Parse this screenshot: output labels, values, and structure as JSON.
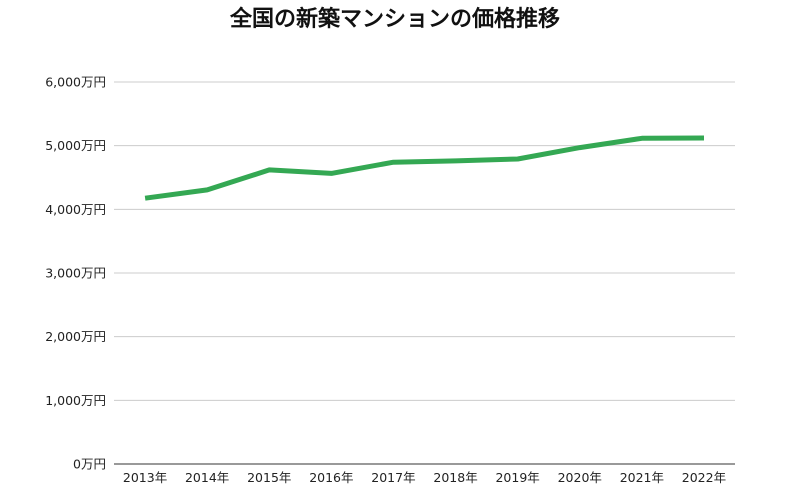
{
  "chart_data": {
    "type": "line",
    "title": "全国の新築マンションの価格推移",
    "categories": [
      "2013年",
      "2014年",
      "2015年",
      "2016年",
      "2017年",
      "2018年",
      "2019年",
      "2020年",
      "2021年",
      "2022年"
    ],
    "series": [
      {
        "values": [
          4175,
          4305,
          4620,
          4565,
          4740,
          4760,
          4790,
          4970,
          5115,
          5120
        ],
        "color": "#34a853"
      }
    ],
    "ylim": [
      0,
      6000
    ],
    "yticks": [
      0,
      1000,
      2000,
      3000,
      4000,
      5000,
      6000
    ],
    "ytick_labels": [
      "0万円",
      "1,000万円",
      "2,000万円",
      "3,000万円",
      "4,000万円",
      "5,000万円",
      "6,000万円"
    ],
    "xlabel": "",
    "ylabel": "",
    "grid": true,
    "legend": "none"
  }
}
